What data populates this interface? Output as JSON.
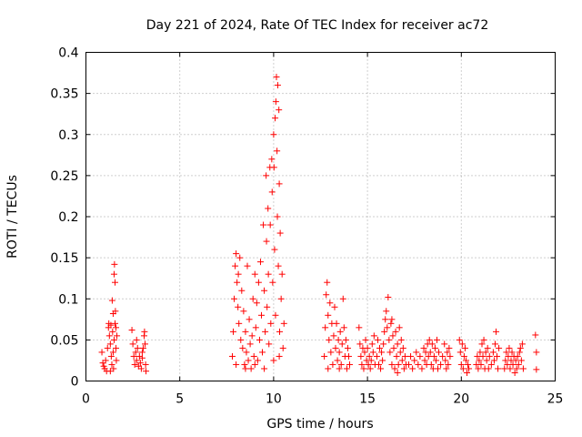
{
  "chart_data": {
    "type": "scatter",
    "title": "Day 221 of 2024, Rate Of TEC Index for receiver ac72",
    "xlabel": "GPS time / hours",
    "ylabel": "ROTI / TECUs",
    "xlim": [
      0,
      25
    ],
    "ylim": [
      0,
      0.4
    ],
    "xticks": [
      0,
      5,
      10,
      15,
      20,
      25
    ],
    "yticks": [
      0,
      0.05,
      0.1,
      0.15,
      0.2,
      0.25,
      0.3,
      0.35,
      0.4
    ],
    "xtick_labels": [
      "0",
      "5",
      "10",
      "15",
      "20",
      "25"
    ],
    "ytick_labels": [
      "0",
      "0.05",
      "0.1",
      "0.15",
      "0.2",
      "0.25",
      "0.3",
      "0.35",
      "0.4"
    ],
    "grid": true,
    "marker": "+",
    "color": "#ff0000",
    "series": [
      {
        "points": [
          [
            0.85,
            0.035
          ],
          [
            0.9,
            0.022
          ],
          [
            0.95,
            0.018
          ],
          [
            1.0,
            0.015
          ],
          [
            1.05,
            0.025
          ],
          [
            1.1,
            0.012
          ],
          [
            1.15,
            0.04
          ],
          [
            1.2,
            0.065
          ],
          [
            1.22,
            0.07
          ],
          [
            1.25,
            0.055
          ],
          [
            1.3,
            0.045
          ],
          [
            1.33,
            0.068
          ],
          [
            1.35,
            0.03
          ],
          [
            1.38,
            0.02
          ],
          [
            1.4,
            0.098
          ],
          [
            1.42,
            0.06
          ],
          [
            1.45,
            0.035
          ],
          [
            1.47,
            0.015
          ],
          [
            1.5,
            0.05
          ],
          [
            1.5,
            0.13
          ],
          [
            1.52,
            0.142
          ],
          [
            1.55,
            0.12
          ],
          [
            1.55,
            0.07
          ],
          [
            1.57,
            0.085
          ],
          [
            1.6,
            0.04
          ],
          [
            1.6,
            0.065
          ],
          [
            1.62,
            0.025
          ],
          [
            1.65,
            0.055
          ],
          [
            1.3,
            0.012
          ],
          [
            1.45,
            0.082
          ],
          [
            2.45,
            0.062
          ],
          [
            2.5,
            0.045
          ],
          [
            2.55,
            0.03
          ],
          [
            2.6,
            0.02
          ],
          [
            2.65,
            0.035
          ],
          [
            2.7,
            0.025
          ],
          [
            2.75,
            0.04
          ],
          [
            2.8,
            0.018
          ],
          [
            2.85,
            0.03
          ],
          [
            2.9,
            0.022
          ],
          [
            2.95,
            0.015
          ],
          [
            3.0,
            0.028
          ],
          [
            3.05,
            0.04
          ],
          [
            3.1,
            0.055
          ],
          [
            3.12,
            0.06
          ],
          [
            3.15,
            0.045
          ],
          [
            3.18,
            0.02
          ],
          [
            3.2,
            0.012
          ],
          [
            2.7,
            0.05
          ],
          [
            3.0,
            0.035
          ],
          [
            7.8,
            0.03
          ],
          [
            7.85,
            0.06
          ],
          [
            7.9,
            0.1
          ],
          [
            7.95,
            0.14
          ],
          [
            8.0,
            0.155
          ],
          [
            8.05,
            0.12
          ],
          [
            8.1,
            0.09
          ],
          [
            8.12,
            0.13
          ],
          [
            8.15,
            0.07
          ],
          [
            8.2,
            0.15
          ],
          [
            8.25,
            0.05
          ],
          [
            8.3,
            0.11
          ],
          [
            8.35,
            0.04
          ],
          [
            8.4,
            0.085
          ],
          [
            8.45,
            0.02
          ],
          [
            8.5,
            0.06
          ],
          [
            8.55,
            0.035
          ],
          [
            8.6,
            0.14
          ],
          [
            8.65,
            0.025
          ],
          [
            8.7,
            0.075
          ],
          [
            8.75,
            0.045
          ],
          [
            8.8,
            0.015
          ],
          [
            8.85,
            0.055
          ],
          [
            8.9,
            0.1
          ],
          [
            8.95,
            0.03
          ],
          [
            9.0,
            0.13
          ],
          [
            9.05,
            0.065
          ],
          [
            9.1,
            0.095
          ],
          [
            9.15,
            0.025
          ],
          [
            9.2,
            0.12
          ],
          [
            9.25,
            0.05
          ],
          [
            9.3,
            0.145
          ],
          [
            9.35,
            0.08
          ],
          [
            9.4,
            0.035
          ],
          [
            9.45,
            0.19
          ],
          [
            9.5,
            0.11
          ],
          [
            9.55,
            0.06
          ],
          [
            9.6,
            0.25
          ],
          [
            9.62,
            0.17
          ],
          [
            9.65,
            0.09
          ],
          [
            9.7,
            0.21
          ],
          [
            9.72,
            0.13
          ],
          [
            9.75,
            0.045
          ],
          [
            9.8,
            0.26
          ],
          [
            9.82,
            0.19
          ],
          [
            9.85,
            0.07
          ],
          [
            9.9,
            0.27
          ],
          [
            9.92,
            0.23
          ],
          [
            9.95,
            0.12
          ],
          [
            10.0,
            0.3
          ],
          [
            10.02,
            0.26
          ],
          [
            10.05,
            0.16
          ],
          [
            10.08,
            0.32
          ],
          [
            10.1,
            0.08
          ],
          [
            10.12,
            0.34
          ],
          [
            10.15,
            0.37
          ],
          [
            10.18,
            0.28
          ],
          [
            10.2,
            0.2
          ],
          [
            10.22,
            0.36
          ],
          [
            10.25,
            0.14
          ],
          [
            10.28,
            0.33
          ],
          [
            10.3,
            0.24
          ],
          [
            10.32,
            0.06
          ],
          [
            10.35,
            0.18
          ],
          [
            10.4,
            0.1
          ],
          [
            10.45,
            0.13
          ],
          [
            10.5,
            0.04
          ],
          [
            10.55,
            0.07
          ],
          [
            8.0,
            0.02
          ],
          [
            8.5,
            0.015
          ],
          [
            9.0,
            0.02
          ],
          [
            9.5,
            0.015
          ],
          [
            10.0,
            0.025
          ],
          [
            10.3,
            0.03
          ],
          [
            12.7,
            0.03
          ],
          [
            12.75,
            0.065
          ],
          [
            12.8,
            0.105
          ],
          [
            12.85,
            0.12
          ],
          [
            12.9,
            0.08
          ],
          [
            12.95,
            0.05
          ],
          [
            13.0,
            0.095
          ],
          [
            13.05,
            0.035
          ],
          [
            13.1,
            0.07
          ],
          [
            13.15,
            0.02
          ],
          [
            13.2,
            0.055
          ],
          [
            13.25,
            0.09
          ],
          [
            13.3,
            0.04
          ],
          [
            13.35,
            0.07
          ],
          [
            13.4,
            0.025
          ],
          [
            13.45,
            0.05
          ],
          [
            13.5,
            0.035
          ],
          [
            13.55,
            0.06
          ],
          [
            13.6,
            0.02
          ],
          [
            13.65,
            0.045
          ],
          [
            13.7,
            0.1
          ],
          [
            13.75,
            0.065
          ],
          [
            13.8,
            0.03
          ],
          [
            13.85,
            0.05
          ],
          [
            13.9,
            0.015
          ],
          [
            13.95,
            0.04
          ],
          [
            14.0,
            0.03
          ],
          [
            14.05,
            0.02
          ],
          [
            12.9,
            0.015
          ],
          [
            13.5,
            0.015
          ],
          [
            14.55,
            0.065
          ],
          [
            14.6,
            0.045
          ],
          [
            14.65,
            0.03
          ],
          [
            14.7,
            0.02
          ],
          [
            14.75,
            0.04
          ],
          [
            14.8,
            0.015
          ],
          [
            14.85,
            0.035
          ],
          [
            14.9,
            0.05
          ],
          [
            14.95,
            0.025
          ],
          [
            15.0,
            0.04
          ],
          [
            15.05,
            0.02
          ],
          [
            15.1,
            0.03
          ],
          [
            15.15,
            0.015
          ],
          [
            15.2,
            0.025
          ],
          [
            15.25,
            0.045
          ],
          [
            15.3,
            0.035
          ],
          [
            15.35,
            0.055
          ],
          [
            15.4,
            0.02
          ],
          [
            15.5,
            0.03
          ],
          [
            15.55,
            0.05
          ],
          [
            15.6,
            0.02
          ],
          [
            15.65,
            0.04
          ],
          [
            15.7,
            0.015
          ],
          [
            15.75,
            0.035
          ],
          [
            15.8,
            0.025
          ],
          [
            15.85,
            0.045
          ],
          [
            15.9,
            0.06
          ],
          [
            15.95,
            0.075
          ],
          [
            16.0,
            0.085
          ],
          [
            16.05,
            0.065
          ],
          [
            16.1,
            0.102
          ],
          [
            16.15,
            0.05
          ],
          [
            16.2,
            0.035
          ],
          [
            16.25,
            0.07
          ],
          [
            16.3,
            0.02
          ],
          [
            16.35,
            0.055
          ],
          [
            16.4,
            0.04
          ],
          [
            16.45,
            0.015
          ],
          [
            16.5,
            0.06
          ],
          [
            16.55,
            0.03
          ],
          [
            16.6,
            0.045
          ],
          [
            16.65,
            0.02
          ],
          [
            16.7,
            0.065
          ],
          [
            16.75,
            0.035
          ],
          [
            16.8,
            0.05
          ],
          [
            16.85,
            0.025
          ],
          [
            16.9,
            0.04
          ],
          [
            16.95,
            0.015
          ],
          [
            17.0,
            0.03
          ],
          [
            17.05,
            0.02
          ],
          [
            16.3,
            0.075
          ],
          [
            16.6,
            0.01
          ],
          [
            17.2,
            0.02
          ],
          [
            17.3,
            0.03
          ],
          [
            17.4,
            0.015
          ],
          [
            17.5,
            0.025
          ],
          [
            17.6,
            0.035
          ],
          [
            17.7,
            0.02
          ],
          [
            17.8,
            0.03
          ],
          [
            17.9,
            0.015
          ],
          [
            18.0,
            0.04
          ],
          [
            18.05,
            0.025
          ],
          [
            18.1,
            0.035
          ],
          [
            18.15,
            0.02
          ],
          [
            18.2,
            0.045
          ],
          [
            18.25,
            0.03
          ],
          [
            18.3,
            0.05
          ],
          [
            18.35,
            0.035
          ],
          [
            18.4,
            0.02
          ],
          [
            18.45,
            0.045
          ],
          [
            18.5,
            0.015
          ],
          [
            18.55,
            0.03
          ],
          [
            18.6,
            0.04
          ],
          [
            18.65,
            0.025
          ],
          [
            18.7,
            0.05
          ],
          [
            18.75,
            0.015
          ],
          [
            18.8,
            0.035
          ],
          [
            18.9,
            0.02
          ],
          [
            19.0,
            0.03
          ],
          [
            19.1,
            0.045
          ],
          [
            19.15,
            0.025
          ],
          [
            19.2,
            0.015
          ],
          [
            19.25,
            0.035
          ],
          [
            19.3,
            0.02
          ],
          [
            19.35,
            0.04
          ],
          [
            19.4,
            0.03
          ],
          [
            19.9,
            0.05
          ],
          [
            19.95,
            0.035
          ],
          [
            20.0,
            0.02
          ],
          [
            20.05,
            0.045
          ],
          [
            20.1,
            0.015
          ],
          [
            20.15,
            0.03
          ],
          [
            20.2,
            0.04
          ],
          [
            20.25,
            0.025
          ],
          [
            20.3,
            0.01
          ],
          [
            20.35,
            0.02
          ],
          [
            20.4,
            0.015
          ],
          [
            20.8,
            0.02
          ],
          [
            20.85,
            0.03
          ],
          [
            20.9,
            0.015
          ],
          [
            20.95,
            0.025
          ],
          [
            21.0,
            0.035
          ],
          [
            21.05,
            0.02
          ],
          [
            21.1,
            0.045
          ],
          [
            21.15,
            0.03
          ],
          [
            21.2,
            0.05
          ],
          [
            21.25,
            0.015
          ],
          [
            21.3,
            0.035
          ],
          [
            21.35,
            0.025
          ],
          [
            21.4,
            0.04
          ],
          [
            21.45,
            0.015
          ],
          [
            21.5,
            0.03
          ],
          [
            21.6,
            0.02
          ],
          [
            21.7,
            0.035
          ],
          [
            21.75,
            0.025
          ],
          [
            21.8,
            0.045
          ],
          [
            21.85,
            0.06
          ],
          [
            21.9,
            0.03
          ],
          [
            21.95,
            0.015
          ],
          [
            22.0,
            0.04
          ],
          [
            22.3,
            0.015
          ],
          [
            22.35,
            0.025
          ],
          [
            22.4,
            0.035
          ],
          [
            22.45,
            0.02
          ],
          [
            22.5,
            0.03
          ],
          [
            22.55,
            0.04
          ],
          [
            22.6,
            0.015
          ],
          [
            22.65,
            0.025
          ],
          [
            22.7,
            0.035
          ],
          [
            22.75,
            0.02
          ],
          [
            22.8,
            0.03
          ],
          [
            22.85,
            0.01
          ],
          [
            22.9,
            0.025
          ],
          [
            22.95,
            0.015
          ],
          [
            23.0,
            0.03
          ],
          [
            23.05,
            0.02
          ],
          [
            23.1,
            0.035
          ],
          [
            23.15,
            0.04
          ],
          [
            23.2,
            0.025
          ],
          [
            23.25,
            0.045
          ],
          [
            23.3,
            0.015
          ],
          [
            23.95,
            0.056
          ],
          [
            24.0,
            0.014
          ],
          [
            24.0,
            0.035
          ]
        ]
      }
    ]
  }
}
